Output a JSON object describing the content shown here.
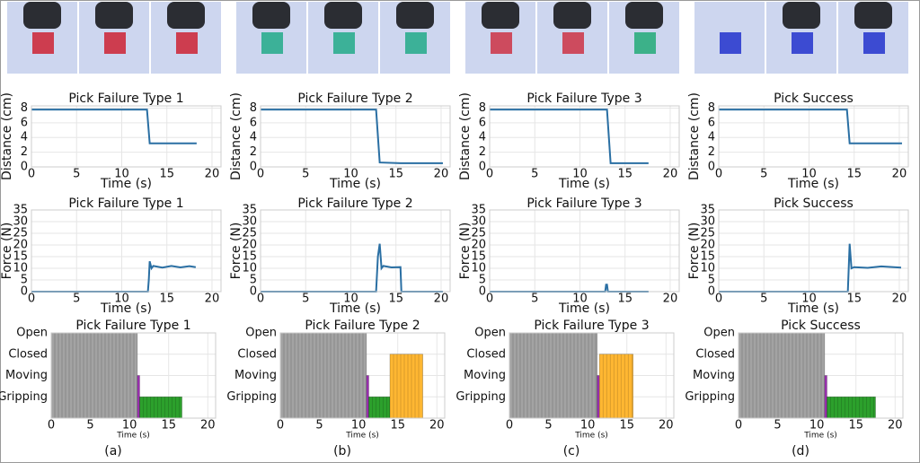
{
  "chart_data": [
    {
      "type": "line",
      "title": "Pick Failure Type 1",
      "xlabel": "Time (s)",
      "ylabel": "Distance (cm)",
      "x": [
        0,
        12.8,
        13.1,
        18.3
      ],
      "values": [
        7.8,
        7.8,
        3.2,
        3.2
      ],
      "color": "#2a6fa3",
      "xlim": [
        0,
        21
      ],
      "xticks": [
        0,
        5,
        10,
        15,
        20
      ],
      "ylim": [
        0,
        8.3
      ],
      "yticks": [
        0,
        2,
        4,
        6,
        8
      ],
      "grid": true
    },
    {
      "type": "line",
      "title": "Pick Failure Type 2",
      "xlabel": "Time (s)",
      "ylabel": "Distance (cm)",
      "x": [
        0,
        12.8,
        13.2,
        15.5,
        20.2
      ],
      "values": [
        7.8,
        7.8,
        0.6,
        0.5,
        0.5
      ],
      "color": "#2a6fa3",
      "xlim": [
        0,
        21
      ],
      "xticks": [
        0,
        5,
        10,
        15,
        20
      ],
      "ylim": [
        0,
        8.3
      ],
      "yticks": [
        0,
        2,
        4,
        6,
        8
      ],
      "grid": true
    },
    {
      "type": "line",
      "title": "Pick Failure Type 3",
      "xlabel": "Time (s)",
      "ylabel": "Distance (cm)",
      "x": [
        0,
        13.0,
        13.4,
        17.6
      ],
      "values": [
        7.8,
        7.8,
        0.5,
        0.5
      ],
      "color": "#2a6fa3",
      "xlim": [
        0,
        21
      ],
      "xticks": [
        0,
        5,
        10,
        15,
        20
      ],
      "ylim": [
        0,
        8.3
      ],
      "yticks": [
        0,
        2,
        4,
        6,
        8
      ],
      "grid": true
    },
    {
      "type": "line",
      "title": "Pick Success",
      "xlabel": "Time (s)",
      "ylabel": "Distance (cm)",
      "x": [
        0,
        14.2,
        14.5,
        20.3
      ],
      "values": [
        7.8,
        7.8,
        3.2,
        3.2
      ],
      "color": "#2a6fa3",
      "xlim": [
        0,
        21
      ],
      "xticks": [
        0,
        5,
        10,
        15,
        20
      ],
      "ylim": [
        0,
        8.3
      ],
      "yticks": [
        0,
        2,
        4,
        6,
        8
      ],
      "grid": true
    },
    {
      "type": "line",
      "title": "Pick Failure Type 1",
      "xlabel": "Time (s)",
      "ylabel": "Force (N)",
      "x": [
        0,
        12.9,
        13.0,
        13.1,
        13.3,
        13.5,
        14.5,
        15.5,
        16.5,
        17.5,
        18.2
      ],
      "values": [
        0,
        0,
        5,
        13,
        10,
        11,
        10.3,
        11,
        10.4,
        10.9,
        10.5
      ],
      "color": "#2a6fa3",
      "xlim": [
        0,
        21
      ],
      "xticks": [
        0,
        5,
        10,
        15,
        20
      ],
      "ylim": [
        0,
        35
      ],
      "yticks": [
        0,
        5,
        10,
        15,
        20,
        25,
        30,
        35
      ],
      "grid": true
    },
    {
      "type": "line",
      "title": "Pick Failure Type 2",
      "xlabel": "Time (s)",
      "ylabel": "Force (N)",
      "x": [
        0,
        12.8,
        13.0,
        13.2,
        13.4,
        13.6,
        14.5,
        15.5,
        15.6,
        20.2
      ],
      "values": [
        0,
        0,
        15,
        20.5,
        10,
        11,
        10.4,
        10.5,
        0,
        0
      ],
      "color": "#2a6fa3",
      "xlim": [
        0,
        21
      ],
      "xticks": [
        0,
        5,
        10,
        15,
        20
      ],
      "ylim": [
        0,
        35
      ],
      "yticks": [
        0,
        5,
        10,
        15,
        20,
        25,
        30,
        35
      ],
      "grid": true
    },
    {
      "type": "line",
      "title": "Pick Failure Type 3",
      "xlabel": "Time (s)",
      "ylabel": "Force (N)",
      "x": [
        0,
        12.8,
        12.9,
        13.0,
        13.1,
        17.6
      ],
      "values": [
        0,
        0,
        3,
        3,
        0,
        0
      ],
      "color": "#2a6fa3",
      "xlim": [
        0,
        21
      ],
      "xticks": [
        0,
        5,
        10,
        15,
        20
      ],
      "ylim": [
        0,
        35
      ],
      "yticks": [
        0,
        5,
        10,
        15,
        20,
        25,
        30,
        35
      ],
      "grid": true
    },
    {
      "type": "line",
      "title": "Pick Success",
      "xlabel": "Time (s)",
      "ylabel": "Force (N)",
      "x": [
        0,
        14.3,
        14.5,
        14.7,
        15.0,
        16.5,
        18.0,
        20.2
      ],
      "values": [
        0,
        0,
        20.5,
        10,
        10.5,
        10.2,
        10.8,
        10.3
      ],
      "color": "#2a6fa3",
      "xlim": [
        0,
        21
      ],
      "xticks": [
        0,
        5,
        10,
        15,
        20
      ],
      "ylim": [
        0,
        35
      ],
      "yticks": [
        0,
        5,
        10,
        15,
        20,
        25,
        30,
        35
      ],
      "grid": true
    },
    {
      "type": "histogram",
      "title": "Pick Failure Type 1",
      "xlabel": "Time (s)",
      "bins": [
        0,
        11,
        11.3,
        16.7
      ],
      "values": [
        4,
        2,
        1
      ],
      "colors": [
        "#a3a3a3",
        "#9b30b0",
        "#2ca02c"
      ],
      "xlim": [
        0,
        21
      ],
      "xticks": [
        0,
        5,
        10,
        15,
        20
      ],
      "ylim": [
        0,
        4
      ],
      "yticks": [
        {
          "value": 1,
          "label": "Gripping"
        },
        {
          "value": 2,
          "label": "Moving"
        },
        {
          "value": 3,
          "label": "Closed"
        },
        {
          "value": 4,
          "label": "Open"
        }
      ],
      "grid": true
    },
    {
      "type": "histogram",
      "title": "Pick Failure Type 2",
      "xlabel": "Time (s)",
      "bins": [
        0,
        11,
        11.3,
        14,
        18.2
      ],
      "values": [
        4,
        2,
        1,
        3
      ],
      "colors": [
        "#a3a3a3",
        "#9b30b0",
        "#2ca02c",
        "#ffb732"
      ],
      "xlim": [
        0,
        21
      ],
      "xticks": [
        0,
        5,
        10,
        15,
        20
      ],
      "ylim": [
        0,
        4
      ],
      "yticks": [
        {
          "value": 1,
          "label": "Gripping"
        },
        {
          "value": 2,
          "label": "Moving"
        },
        {
          "value": 3,
          "label": "Closed"
        },
        {
          "value": 4,
          "label": "Open"
        }
      ],
      "grid": true
    },
    {
      "type": "histogram",
      "title": "Pick Failure Type 3",
      "xlabel": "Time (s)",
      "bins": [
        0,
        11.2,
        11.5,
        15.8
      ],
      "values": [
        4,
        2,
        3
      ],
      "colors": [
        "#a3a3a3",
        "#9b30b0",
        "#ffb732"
      ],
      "xlim": [
        0,
        21
      ],
      "xticks": [
        0,
        5,
        10,
        15,
        20
      ],
      "ylim": [
        0,
        4
      ],
      "yticks": [
        {
          "value": 1,
          "label": "Gripping"
        },
        {
          "value": 2,
          "label": "Moving"
        },
        {
          "value": 3,
          "label": "Closed"
        },
        {
          "value": 4,
          "label": "Open"
        }
      ],
      "grid": true
    },
    {
      "type": "histogram",
      "title": "Pick Success",
      "xlabel": "Time (s)",
      "bins": [
        0,
        11,
        11.3,
        17.5
      ],
      "values": [
        4,
        2,
        1
      ],
      "colors": [
        "#a3a3a3",
        "#9b30b0",
        "#2ca02c"
      ],
      "xlim": [
        0,
        21
      ],
      "xticks": [
        0,
        5,
        10,
        15,
        20
      ],
      "ylim": [
        0,
        4
      ],
      "yticks": [
        {
          "value": 1,
          "label": "Gripping"
        },
        {
          "value": 2,
          "label": "Moving"
        },
        {
          "value": 3,
          "label": "Closed"
        },
        {
          "value": 4,
          "label": "Open"
        }
      ],
      "grid": true
    }
  ],
  "captions": [
    "(a)",
    "(b)",
    "(c)",
    "(d)"
  ]
}
